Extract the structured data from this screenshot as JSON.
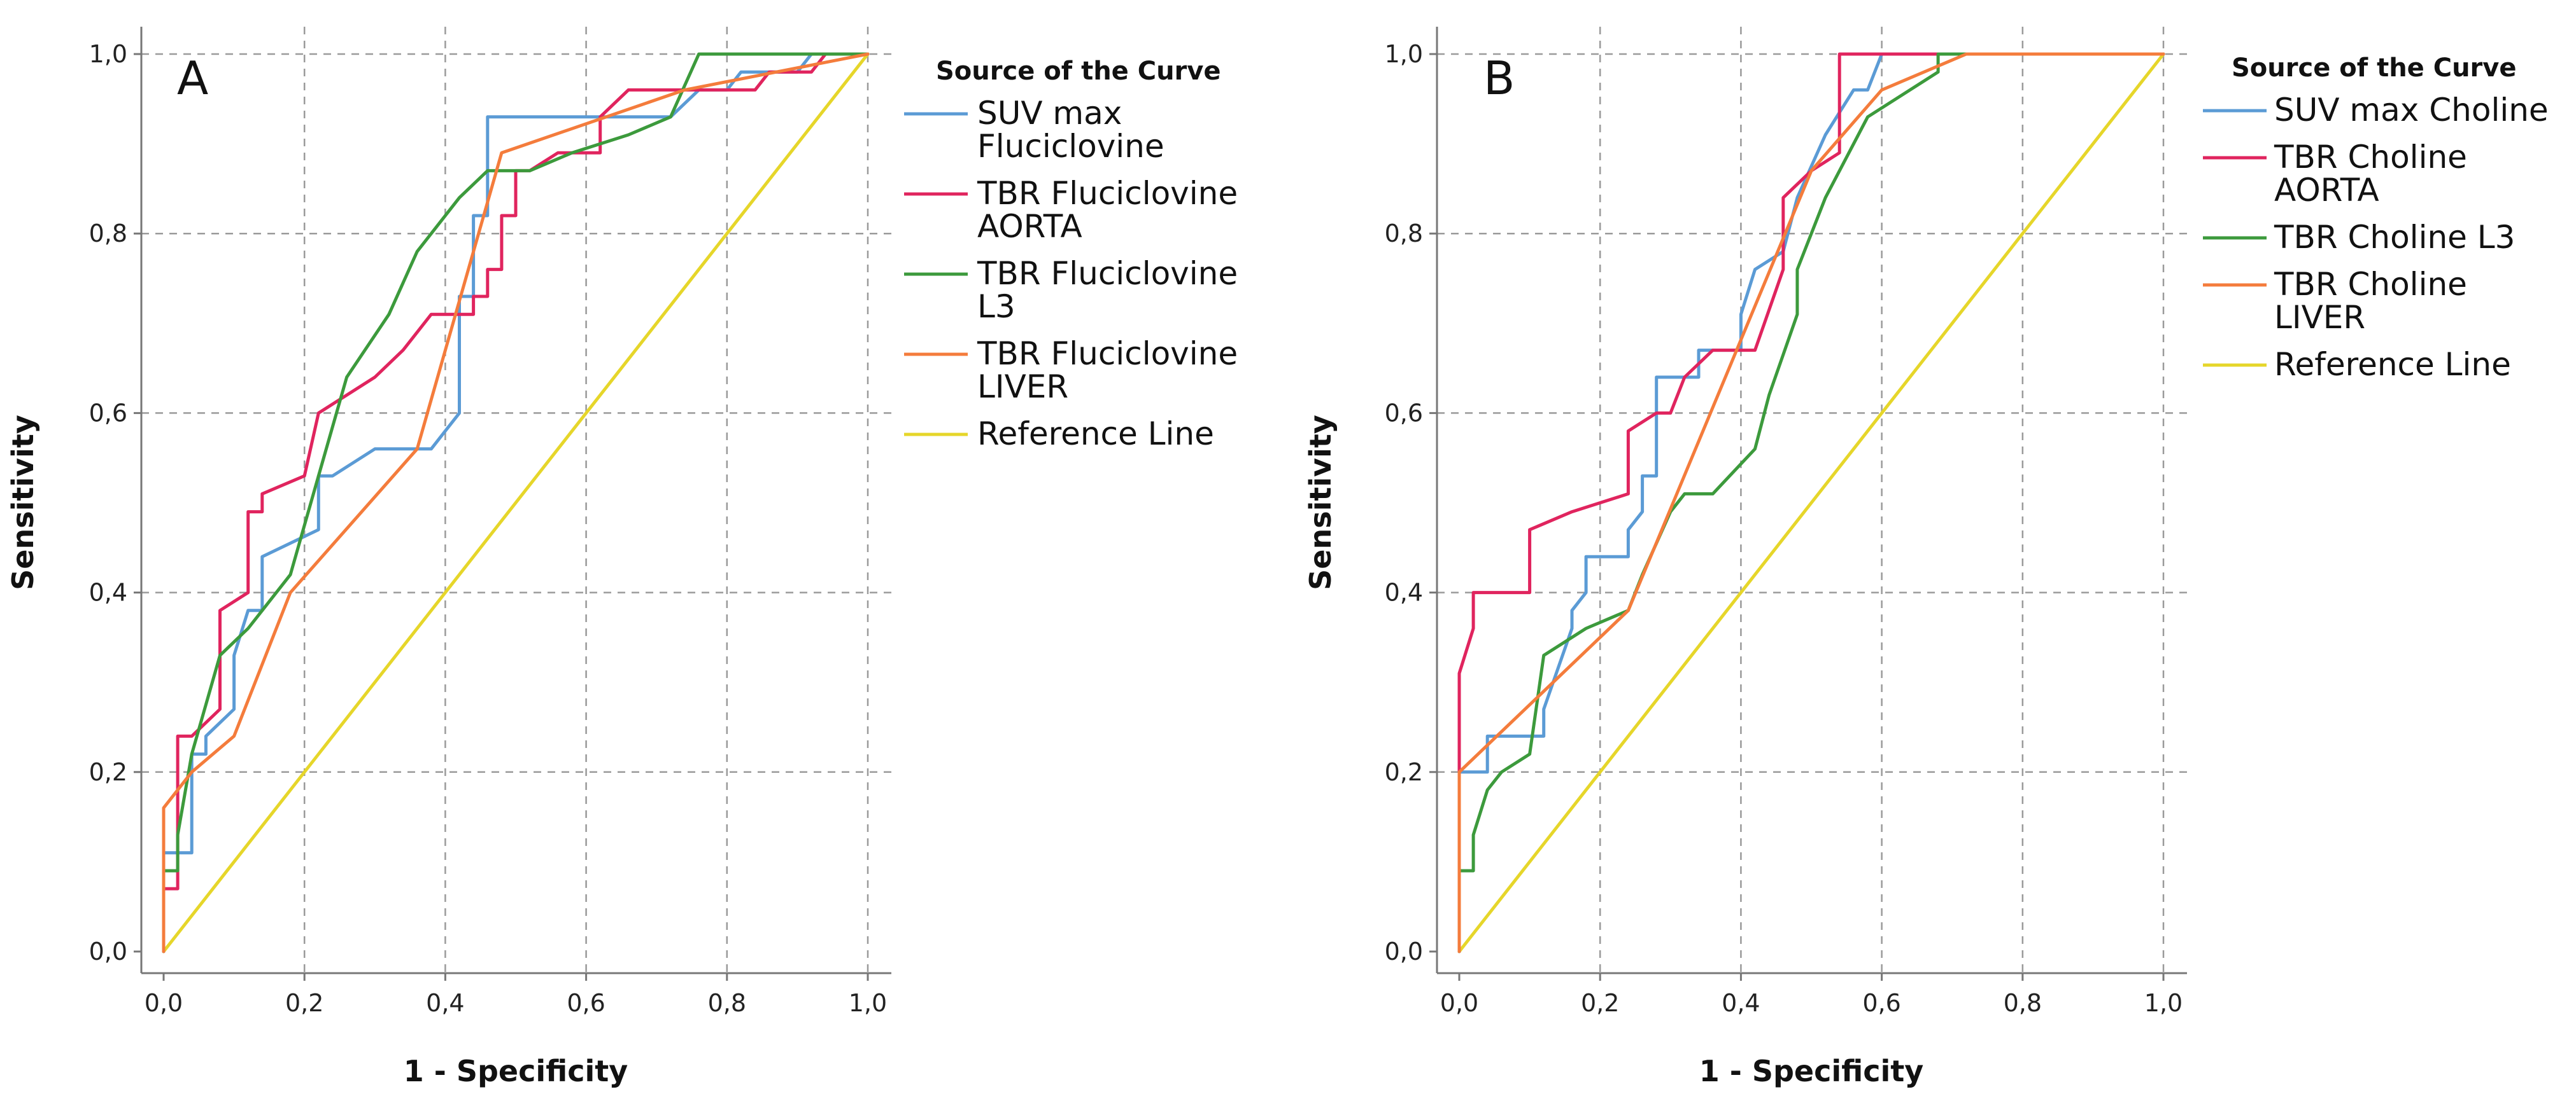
{
  "chart_data": [
    {
      "type": "line",
      "panel_letter": "A",
      "xlabel": "1 - Specificity",
      "ylabel": "Sensitivity",
      "xlim": [
        0,
        1
      ],
      "ylim": [
        0,
        1
      ],
      "x_ticks": [
        "0,0",
        "0,2",
        "0,4",
        "0,6",
        "0,8",
        "1,0"
      ],
      "y_ticks": [
        "0,0",
        "0,2",
        "0,4",
        "0,6",
        "0,8",
        "1,0"
      ],
      "grid": true,
      "legend": {
        "title": "Source of the Curve",
        "position": "right"
      },
      "series": [
        {
          "name_lines": [
            "SUV max",
            "Fluciclovine"
          ],
          "color": "#5b9bd5",
          "points": [
            [
              0,
              0
            ],
            [
              0,
              0.11
            ],
            [
              0.04,
              0.11
            ],
            [
              0.04,
              0.22
            ],
            [
              0.06,
              0.22
            ],
            [
              0.06,
              0.24
            ],
            [
              0.1,
              0.27
            ],
            [
              0.1,
              0.33
            ],
            [
              0.12,
              0.38
            ],
            [
              0.14,
              0.38
            ],
            [
              0.14,
              0.44
            ],
            [
              0.22,
              0.47
            ],
            [
              0.22,
              0.53
            ],
            [
              0.24,
              0.53
            ],
            [
              0.3,
              0.56
            ],
            [
              0.38,
              0.56
            ],
            [
              0.4,
              0.58
            ],
            [
              0.42,
              0.6
            ],
            [
              0.42,
              0.73
            ],
            [
              0.44,
              0.73
            ],
            [
              0.44,
              0.82
            ],
            [
              0.46,
              0.82
            ],
            [
              0.46,
              0.93
            ],
            [
              0.72,
              0.93
            ],
            [
              0.76,
              0.96
            ],
            [
              0.8,
              0.96
            ],
            [
              0.82,
              0.98
            ],
            [
              0.9,
              0.98
            ],
            [
              0.92,
              1.0
            ],
            [
              1.0,
              1.0
            ]
          ]
        },
        {
          "name_lines": [
            "TBR Fluciclovine",
            "AORTA"
          ],
          "color": "#e0245e",
          "points": [
            [
              0,
              0
            ],
            [
              0,
              0.07
            ],
            [
              0.02,
              0.07
            ],
            [
              0.02,
              0.24
            ],
            [
              0.04,
              0.24
            ],
            [
              0.08,
              0.27
            ],
            [
              0.08,
              0.38
            ],
            [
              0.12,
              0.4
            ],
            [
              0.12,
              0.49
            ],
            [
              0.14,
              0.49
            ],
            [
              0.14,
              0.51
            ],
            [
              0.2,
              0.53
            ],
            [
              0.22,
              0.6
            ],
            [
              0.3,
              0.64
            ],
            [
              0.34,
              0.67
            ],
            [
              0.38,
              0.71
            ],
            [
              0.44,
              0.71
            ],
            [
              0.44,
              0.73
            ],
            [
              0.46,
              0.73
            ],
            [
              0.46,
              0.76
            ],
            [
              0.48,
              0.76
            ],
            [
              0.48,
              0.82
            ],
            [
              0.5,
              0.82
            ],
            [
              0.5,
              0.87
            ],
            [
              0.52,
              0.87
            ],
            [
              0.56,
              0.89
            ],
            [
              0.62,
              0.89
            ],
            [
              0.62,
              0.93
            ],
            [
              0.66,
              0.96
            ],
            [
              0.84,
              0.96
            ],
            [
              0.86,
              0.98
            ],
            [
              0.92,
              0.98
            ],
            [
              0.94,
              1.0
            ],
            [
              1.0,
              1.0
            ]
          ]
        },
        {
          "name_lines": [
            "TBR Fluciclovine",
            "L3"
          ],
          "color": "#3c9a3c",
          "points": [
            [
              0,
              0
            ],
            [
              0,
              0.09
            ],
            [
              0.02,
              0.09
            ],
            [
              0.02,
              0.13
            ],
            [
              0.04,
              0.22
            ],
            [
              0.08,
              0.33
            ],
            [
              0.12,
              0.36
            ],
            [
              0.18,
              0.42
            ],
            [
              0.22,
              0.53
            ],
            [
              0.26,
              0.64
            ],
            [
              0.32,
              0.71
            ],
            [
              0.36,
              0.78
            ],
            [
              0.42,
              0.84
            ],
            [
              0.46,
              0.87
            ],
            [
              0.52,
              0.87
            ],
            [
              0.58,
              0.89
            ],
            [
              0.66,
              0.91
            ],
            [
              0.72,
              0.93
            ],
            [
              0.76,
              1.0
            ],
            [
              1.0,
              1.0
            ]
          ]
        },
        {
          "name_lines": [
            "TBR Fluciclovine",
            "LIVER"
          ],
          "color": "#f47c3c",
          "points": [
            [
              0,
              0
            ],
            [
              0,
              0.16
            ],
            [
              0.04,
              0.2
            ],
            [
              0.1,
              0.24
            ],
            [
              0.18,
              0.4
            ],
            [
              0.36,
              0.56
            ],
            [
              0.48,
              0.89
            ],
            [
              0.74,
              0.96
            ],
            [
              1.0,
              1.0
            ]
          ]
        },
        {
          "name_lines": [
            "Reference Line"
          ],
          "color": "#e6d62a",
          "points": [
            [
              0,
              0
            ],
            [
              1,
              1
            ]
          ]
        }
      ]
    },
    {
      "type": "line",
      "panel_letter": "B",
      "xlabel": "1 - Specificity",
      "ylabel": "Sensitivity",
      "xlim": [
        0,
        1
      ],
      "ylim": [
        0,
        1
      ],
      "x_ticks": [
        "0,0",
        "0,2",
        "0,4",
        "0,6",
        "0,8",
        "1,0"
      ],
      "y_ticks": [
        "0,0",
        "0,2",
        "0,4",
        "0,6",
        "0,8",
        "1,0"
      ],
      "grid": true,
      "legend": {
        "title": "Source of the Curve",
        "position": "right"
      },
      "series": [
        {
          "name_lines": [
            "SUV max Choline"
          ],
          "color": "#5b9bd5",
          "points": [
            [
              0,
              0
            ],
            [
              0,
              0.2
            ],
            [
              0.04,
              0.2
            ],
            [
              0.04,
              0.24
            ],
            [
              0.12,
              0.24
            ],
            [
              0.12,
              0.27
            ],
            [
              0.16,
              0.36
            ],
            [
              0.16,
              0.38
            ],
            [
              0.18,
              0.4
            ],
            [
              0.18,
              0.44
            ],
            [
              0.24,
              0.44
            ],
            [
              0.24,
              0.47
            ],
            [
              0.26,
              0.49
            ],
            [
              0.26,
              0.53
            ],
            [
              0.28,
              0.53
            ],
            [
              0.28,
              0.64
            ],
            [
              0.34,
              0.64
            ],
            [
              0.34,
              0.67
            ],
            [
              0.4,
              0.67
            ],
            [
              0.4,
              0.71
            ],
            [
              0.42,
              0.76
            ],
            [
              0.46,
              0.78
            ],
            [
              0.48,
              0.84
            ],
            [
              0.52,
              0.91
            ],
            [
              0.56,
              0.96
            ],
            [
              0.58,
              0.96
            ],
            [
              0.6,
              1.0
            ],
            [
              1.0,
              1.0
            ]
          ]
        },
        {
          "name_lines": [
            "TBR Choline",
            "AORTA"
          ],
          "color": "#e0245e",
          "points": [
            [
              0,
              0
            ],
            [
              0,
              0.31
            ],
            [
              0.02,
              0.36
            ],
            [
              0.02,
              0.4
            ],
            [
              0.1,
              0.4
            ],
            [
              0.1,
              0.47
            ],
            [
              0.16,
              0.49
            ],
            [
              0.24,
              0.51
            ],
            [
              0.24,
              0.58
            ],
            [
              0.28,
              0.6
            ],
            [
              0.3,
              0.6
            ],
            [
              0.32,
              0.64
            ],
            [
              0.36,
              0.67
            ],
            [
              0.42,
              0.67
            ],
            [
              0.46,
              0.76
            ],
            [
              0.46,
              0.84
            ],
            [
              0.5,
              0.87
            ],
            [
              0.54,
              0.89
            ],
            [
              0.54,
              1.0
            ],
            [
              1.0,
              1.0
            ]
          ]
        },
        {
          "name_lines": [
            "TBR Choline L3"
          ],
          "color": "#3c9a3c",
          "points": [
            [
              0,
              0
            ],
            [
              0,
              0.09
            ],
            [
              0.02,
              0.09
            ],
            [
              0.02,
              0.13
            ],
            [
              0.04,
              0.18
            ],
            [
              0.06,
              0.2
            ],
            [
              0.1,
              0.22
            ],
            [
              0.12,
              0.33
            ],
            [
              0.18,
              0.36
            ],
            [
              0.24,
              0.38
            ],
            [
              0.26,
              0.42
            ],
            [
              0.3,
              0.49
            ],
            [
              0.32,
              0.51
            ],
            [
              0.36,
              0.51
            ],
            [
              0.42,
              0.56
            ],
            [
              0.44,
              0.62
            ],
            [
              0.48,
              0.71
            ],
            [
              0.48,
              0.76
            ],
            [
              0.52,
              0.84
            ],
            [
              0.58,
              0.93
            ],
            [
              0.68,
              0.98
            ],
            [
              0.68,
              1.0
            ],
            [
              1.0,
              1.0
            ]
          ]
        },
        {
          "name_lines": [
            "TBR Choline",
            "LIVER"
          ],
          "color": "#f47c3c",
          "points": [
            [
              0,
              0
            ],
            [
              0,
              0.2
            ],
            [
              0.24,
              0.38
            ],
            [
              0.5,
              0.87
            ],
            [
              0.6,
              0.96
            ],
            [
              0.72,
              1.0
            ],
            [
              1.0,
              1.0
            ]
          ]
        },
        {
          "name_lines": [
            "Reference Line"
          ],
          "color": "#e6d62a",
          "points": [
            [
              0,
              0
            ],
            [
              1,
              1
            ]
          ]
        }
      ]
    }
  ]
}
